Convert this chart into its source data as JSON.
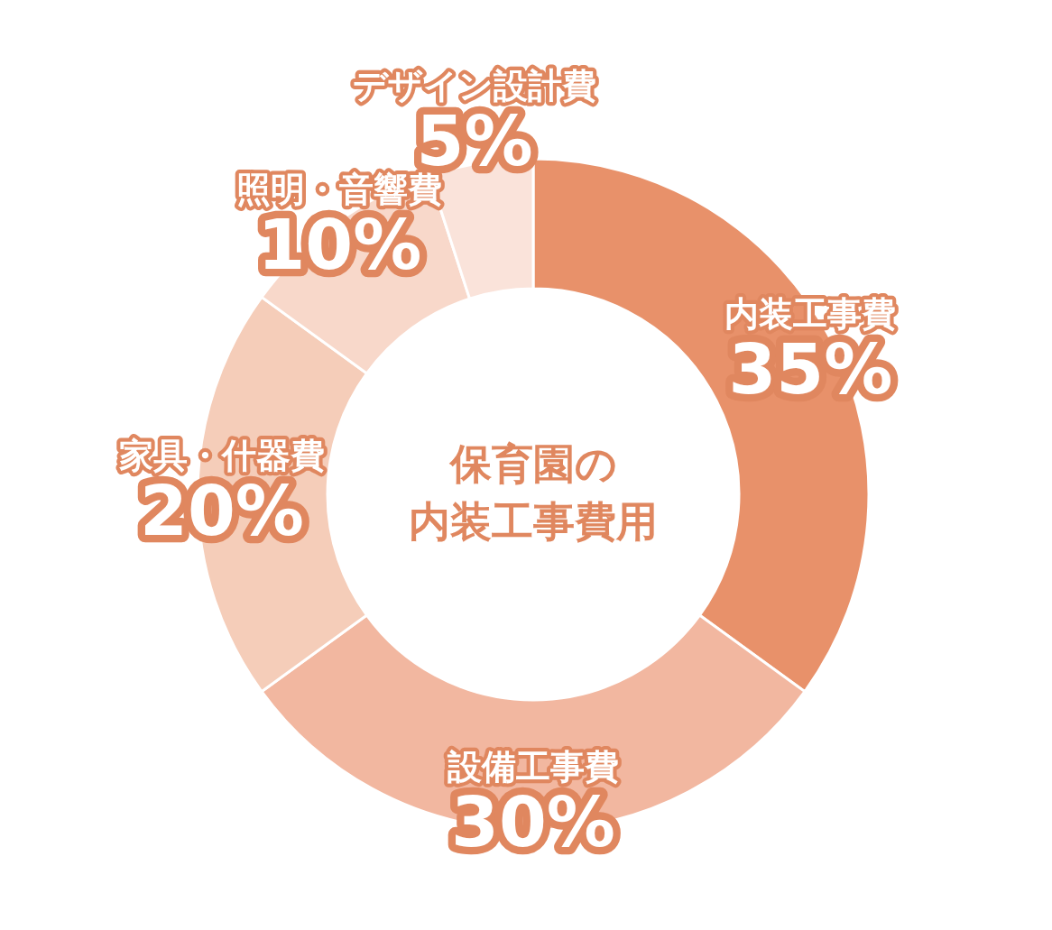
{
  "chart_data": {
    "type": "donut",
    "title": "保育園の内装工事費用",
    "categories": [
      "内装工事費",
      "設備工事費",
      "家具・什器費",
      "照明・音響費",
      "デザイン設計費"
    ],
    "values": [
      35,
      30,
      20,
      10,
      5
    ],
    "colors": [
      "#e8916a",
      "#f2b7a0",
      "#f5cdb9",
      "#f8d8ca",
      "#fae3da"
    ],
    "value_labels": [
      "35%",
      "30%",
      "20%",
      "10%",
      "5%"
    ]
  }
}
